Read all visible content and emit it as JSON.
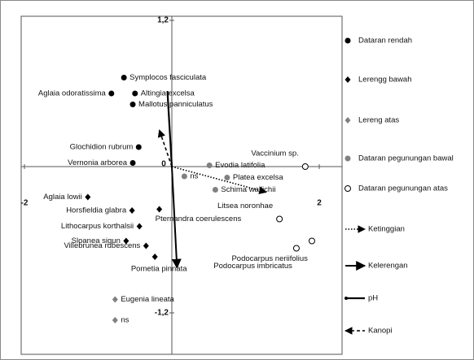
{
  "chart_data": {
    "type": "scatter",
    "xlim": [
      -2,
      2
    ],
    "ylim": [
      -1.52,
      1.2
    ],
    "xticks": [
      -2,
      0,
      2
    ],
    "yticks": [
      {
        "value": 1.2,
        "label": "1,2"
      },
      {
        "value": -1.2,
        "label": "-1,2"
      }
    ],
    "series": [
      {
        "name": "Dataran rendah",
        "marker": "circle",
        "color": "#000000",
        "x": [
          -0.65,
          -0.5,
          -0.82,
          -0.53,
          -0.45,
          -0.53
        ],
        "y": [
          0.73,
          0.6,
          0.6,
          0.51,
          0.16,
          0.03
        ],
        "labels": [
          "Symplocos fasciculata",
          "Altingia excelsa",
          "Aglaia odoratissima",
          "Mallotus panniculatus",
          "Glochidion rubrum",
          "Vernonia arborea"
        ]
      },
      {
        "name": "Lerengg bawah",
        "marker": "diamond",
        "color": "#000000",
        "x": [
          -1.14,
          -0.54,
          -0.44,
          -0.62,
          -0.35,
          -0.17,
          -0.23
        ],
        "y": [
          -0.25,
          -0.36,
          -0.49,
          -0.61,
          -0.65,
          -0.35,
          -0.74
        ],
        "labels": [
          "Aglaia lowii",
          "Horsfieldia glabra",
          "Lithocarpus korthalsii",
          "Sloanea sigun",
          "Villebrunea rubescens",
          "Pternandra coerulescens",
          "Pometia pinnata"
        ]
      },
      {
        "name": "Lereng atas",
        "marker": "diamond",
        "color": "#808080",
        "x": [
          -0.77,
          -0.77
        ],
        "y": [
          -1.09,
          -1.26
        ],
        "labels": [
          "Eugenia lineata",
          "ns"
        ]
      },
      {
        "name": "Dataran pegunungan bawal",
        "marker": "circle",
        "color": "#808080",
        "x": [
          0.51,
          0.17,
          0.75,
          0.59
        ],
        "y": [
          0.01,
          -0.08,
          -0.09,
          -0.19
        ],
        "labels": [
          "Evodia latifolia",
          "ns",
          "Platea excelsa",
          "Schima wallichii"
        ]
      },
      {
        "name": "Dataran pegunungan atas",
        "marker": "open-circle",
        "color": "#000000",
        "x": [
          1.81,
          1.46,
          1.9,
          1.69
        ],
        "y": [
          0.0,
          -0.43,
          -0.61,
          -0.67
        ],
        "labels": [
          "Vaccinium sp.",
          "Litsea noronhae",
          "Podocarpus neriifolius",
          "Podocarpus imbricatus"
        ]
      }
    ],
    "vectors": [
      {
        "name": "Ketinggian",
        "style": "dotted",
        "x": 1.28,
        "y": -0.21
      },
      {
        "name": "Kelerengan",
        "style": "solid",
        "x": 0.07,
        "y": -0.83
      },
      {
        "name": "pH",
        "style": "thick",
        "x": -0.06,
        "y": 0.62
      },
      {
        "name": "Kanopi",
        "style": "dashed",
        "x": -0.17,
        "y": 0.3
      }
    ]
  }
}
